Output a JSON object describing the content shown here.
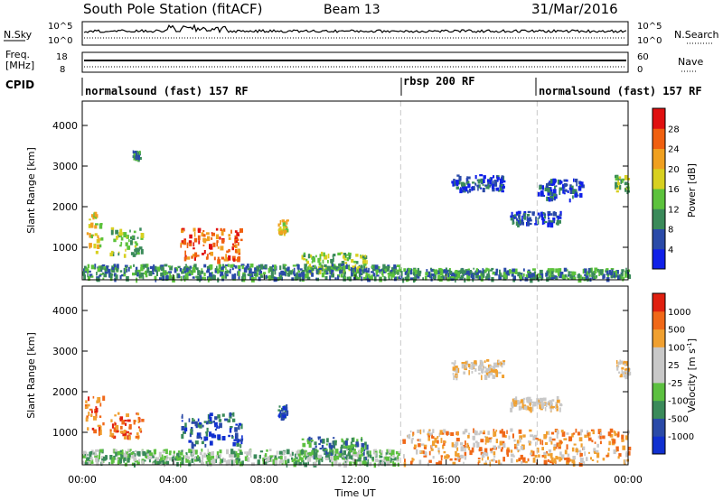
{
  "header": {
    "station": "South Pole Station (fitACF)",
    "beam": "Beam 13",
    "date": "31/Mar/2016"
  },
  "status_panels": {
    "nsky_label": "N.Sky",
    "nsearch_label": "N.Search",
    "noise_ticks": [
      "10^5",
      "10^0"
    ],
    "freq_label_1": "Freq.",
    "freq_label_2": "[MHz]",
    "freq_ticks": [
      "18",
      "8"
    ],
    "nave_label": "Nave",
    "nave_ticks": [
      "60",
      "0"
    ],
    "cpid_label": "CPID",
    "cpid_segments": [
      {
        "label": "normalsound (fast) 157 RF",
        "start": "00:00",
        "end": "14:00"
      },
      {
        "label": "rbsp 200 RF",
        "start": "14:00",
        "end": "20:00"
      },
      {
        "label": "normalsound (fast) 157 RF",
        "start": "20:00",
        "end": "24:00"
      }
    ]
  },
  "colors": {
    "power": [
      "#1020e8",
      "#2a4aa8",
      "#3a8a5a",
      "#5cc23c",
      "#d8d020",
      "#f0a020",
      "#f06010",
      "#e01010"
    ],
    "velocity": [
      "#e02010",
      "#f06818",
      "#f0a030",
      "#c8c8c8",
      "#c8c8c8",
      "#5cc040",
      "#3a8a5a",
      "#2a4aa8",
      "#1030d0"
    ],
    "dashed_line": "#c8c8c8"
  },
  "chart_data": [
    {
      "type": "heatmap",
      "panel": "power",
      "xlabel": "",
      "ylabel": "Slant Range [km]",
      "xlim_hours": [
        0,
        24
      ],
      "ylim_km": [
        200,
        4600
      ],
      "y_ticks": [
        "1000",
        "2000",
        "3000",
        "4000"
      ],
      "colorbar_label": "Power [dB]",
      "colorbar_ticks": [
        "4",
        "8",
        "12",
        "16",
        "20",
        "24",
        "28"
      ],
      "vertical_dashed_lines_hours": [
        14,
        20
      ],
      "echo_regions": [
        {
          "t0": 0.1,
          "t1": 0.9,
          "r0": 900,
          "r1": 1900,
          "value_level": 4
        },
        {
          "t0": 1.2,
          "t1": 2.6,
          "r0": 800,
          "r1": 1500,
          "value_level": 3
        },
        {
          "t0": 2.2,
          "t1": 2.5,
          "r0": 3200,
          "r1": 3400,
          "value_level": 2
        },
        {
          "t0": 4.3,
          "t1": 7.0,
          "r0": 700,
          "r1": 1500,
          "value_level": 6
        },
        {
          "t0": 8.6,
          "t1": 9.0,
          "r0": 1400,
          "r1": 1700,
          "value_level": 4
        },
        {
          "t0": 9.6,
          "t1": 12.5,
          "r0": 400,
          "r1": 900,
          "value_level": 3
        },
        {
          "t0": 0.0,
          "t1": 14.0,
          "r0": 250,
          "r1": 600,
          "value_level": 2
        },
        {
          "t0": 16.2,
          "t1": 18.5,
          "r0": 2400,
          "r1": 2800,
          "value_level": 1
        },
        {
          "t0": 18.8,
          "t1": 21.0,
          "r0": 1600,
          "r1": 1900,
          "value_level": 1
        },
        {
          "t0": 20.0,
          "t1": 22.0,
          "r0": 2200,
          "r1": 2700,
          "value_level": 1
        },
        {
          "t0": 23.4,
          "t1": 24.0,
          "r0": 2400,
          "r1": 2800,
          "value_level": 3
        },
        {
          "t0": 14.0,
          "t1": 24.0,
          "r0": 250,
          "r1": 500,
          "value_level": 2
        }
      ]
    },
    {
      "type": "heatmap",
      "panel": "velocity",
      "xlabel": "Time UT",
      "ylabel": "Slant Range [km]",
      "xlim_hours": [
        0,
        24
      ],
      "ylim_km": [
        200,
        4600
      ],
      "x_ticks": [
        "00:00",
        "04:00",
        "08:00",
        "12:00",
        "16:00",
        "20:00",
        "00:00"
      ],
      "y_ticks": [
        "1000",
        "2000",
        "3000",
        "4000"
      ],
      "colorbar_label": "Velocity [m s",
      "colorbar_label_exp": "-1",
      "colorbar_label_end": "]",
      "colorbar_ticks": [
        "1000",
        "500",
        "100",
        "25",
        "-25",
        "-100",
        "-500",
        "-1000"
      ],
      "vertical_dashed_lines_hours": [
        14,
        20
      ],
      "echo_regions": [
        {
          "t0": 0.1,
          "t1": 0.9,
          "r0": 1000,
          "r1": 1900,
          "value_level": 1
        },
        {
          "t0": 1.2,
          "t1": 2.6,
          "r0": 900,
          "r1": 1500,
          "value_level": 1
        },
        {
          "t0": 4.3,
          "t1": 7.0,
          "r0": 700,
          "r1": 1500,
          "value_level": 7
        },
        {
          "t0": 8.6,
          "t1": 9.0,
          "r0": 1400,
          "r1": 1700,
          "value_level": 7
        },
        {
          "t0": 9.6,
          "t1": 12.5,
          "r0": 400,
          "r1": 900,
          "value_level": 6
        },
        {
          "t0": 0.0,
          "t1": 14.0,
          "r0": 250,
          "r1": 600,
          "value_level": 5
        },
        {
          "t0": 16.2,
          "t1": 18.5,
          "r0": 2400,
          "r1": 2800,
          "value_level": 3
        },
        {
          "t0": 18.8,
          "t1": 21.0,
          "r0": 1600,
          "r1": 1900,
          "value_level": 3
        },
        {
          "t0": 23.4,
          "t1": 24.0,
          "r0": 2400,
          "r1": 2800,
          "value_level": 3
        },
        {
          "t0": 14.0,
          "t1": 24.0,
          "r0": 250,
          "r1": 1100,
          "value_level": 2
        }
      ]
    }
  ]
}
